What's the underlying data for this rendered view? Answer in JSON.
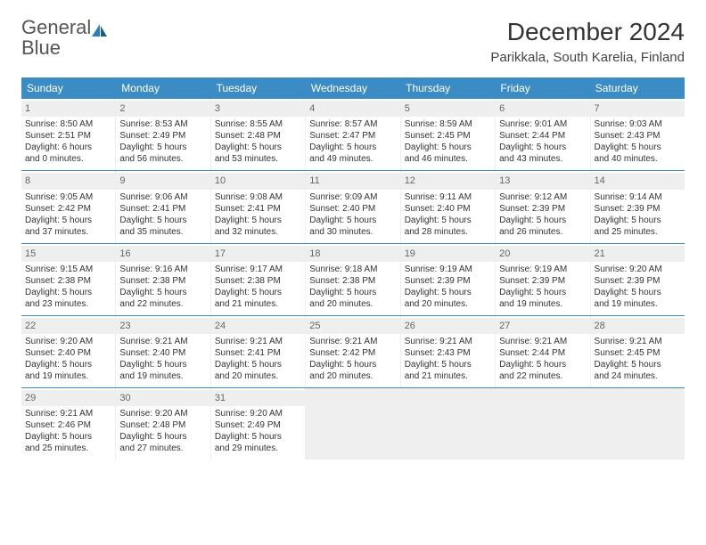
{
  "logo": {
    "word1": "General",
    "word2": "Blue"
  },
  "title": "December 2024",
  "location": "Parikkala, South Karelia, Finland",
  "colors": {
    "header_bg": "#3b8cc4",
    "header_text": "#ffffff",
    "daynum_bg": "#efefef",
    "border": "#3b8cc4",
    "logo_blue": "#2a7fba",
    "text": "#333333"
  },
  "day_headers": [
    "Sunday",
    "Monday",
    "Tuesday",
    "Wednesday",
    "Thursday",
    "Friday",
    "Saturday"
  ],
  "weeks": [
    [
      {
        "num": "1",
        "sunrise": "Sunrise: 8:50 AM",
        "sunset": "Sunset: 2:51 PM",
        "day1": "Daylight: 6 hours",
        "day2": "and 0 minutes."
      },
      {
        "num": "2",
        "sunrise": "Sunrise: 8:53 AM",
        "sunset": "Sunset: 2:49 PM",
        "day1": "Daylight: 5 hours",
        "day2": "and 56 minutes."
      },
      {
        "num": "3",
        "sunrise": "Sunrise: 8:55 AM",
        "sunset": "Sunset: 2:48 PM",
        "day1": "Daylight: 5 hours",
        "day2": "and 53 minutes."
      },
      {
        "num": "4",
        "sunrise": "Sunrise: 8:57 AM",
        "sunset": "Sunset: 2:47 PM",
        "day1": "Daylight: 5 hours",
        "day2": "and 49 minutes."
      },
      {
        "num": "5",
        "sunrise": "Sunrise: 8:59 AM",
        "sunset": "Sunset: 2:45 PM",
        "day1": "Daylight: 5 hours",
        "day2": "and 46 minutes."
      },
      {
        "num": "6",
        "sunrise": "Sunrise: 9:01 AM",
        "sunset": "Sunset: 2:44 PM",
        "day1": "Daylight: 5 hours",
        "day2": "and 43 minutes."
      },
      {
        "num": "7",
        "sunrise": "Sunrise: 9:03 AM",
        "sunset": "Sunset: 2:43 PM",
        "day1": "Daylight: 5 hours",
        "day2": "and 40 minutes."
      }
    ],
    [
      {
        "num": "8",
        "sunrise": "Sunrise: 9:05 AM",
        "sunset": "Sunset: 2:42 PM",
        "day1": "Daylight: 5 hours",
        "day2": "and 37 minutes."
      },
      {
        "num": "9",
        "sunrise": "Sunrise: 9:06 AM",
        "sunset": "Sunset: 2:41 PM",
        "day1": "Daylight: 5 hours",
        "day2": "and 35 minutes."
      },
      {
        "num": "10",
        "sunrise": "Sunrise: 9:08 AM",
        "sunset": "Sunset: 2:41 PM",
        "day1": "Daylight: 5 hours",
        "day2": "and 32 minutes."
      },
      {
        "num": "11",
        "sunrise": "Sunrise: 9:09 AM",
        "sunset": "Sunset: 2:40 PM",
        "day1": "Daylight: 5 hours",
        "day2": "and 30 minutes."
      },
      {
        "num": "12",
        "sunrise": "Sunrise: 9:11 AM",
        "sunset": "Sunset: 2:40 PM",
        "day1": "Daylight: 5 hours",
        "day2": "and 28 minutes."
      },
      {
        "num": "13",
        "sunrise": "Sunrise: 9:12 AM",
        "sunset": "Sunset: 2:39 PM",
        "day1": "Daylight: 5 hours",
        "day2": "and 26 minutes."
      },
      {
        "num": "14",
        "sunrise": "Sunrise: 9:14 AM",
        "sunset": "Sunset: 2:39 PM",
        "day1": "Daylight: 5 hours",
        "day2": "and 25 minutes."
      }
    ],
    [
      {
        "num": "15",
        "sunrise": "Sunrise: 9:15 AM",
        "sunset": "Sunset: 2:38 PM",
        "day1": "Daylight: 5 hours",
        "day2": "and 23 minutes."
      },
      {
        "num": "16",
        "sunrise": "Sunrise: 9:16 AM",
        "sunset": "Sunset: 2:38 PM",
        "day1": "Daylight: 5 hours",
        "day2": "and 22 minutes."
      },
      {
        "num": "17",
        "sunrise": "Sunrise: 9:17 AM",
        "sunset": "Sunset: 2:38 PM",
        "day1": "Daylight: 5 hours",
        "day2": "and 21 minutes."
      },
      {
        "num": "18",
        "sunrise": "Sunrise: 9:18 AM",
        "sunset": "Sunset: 2:38 PM",
        "day1": "Daylight: 5 hours",
        "day2": "and 20 minutes."
      },
      {
        "num": "19",
        "sunrise": "Sunrise: 9:19 AM",
        "sunset": "Sunset: 2:39 PM",
        "day1": "Daylight: 5 hours",
        "day2": "and 20 minutes."
      },
      {
        "num": "20",
        "sunrise": "Sunrise: 9:19 AM",
        "sunset": "Sunset: 2:39 PM",
        "day1": "Daylight: 5 hours",
        "day2": "and 19 minutes."
      },
      {
        "num": "21",
        "sunrise": "Sunrise: 9:20 AM",
        "sunset": "Sunset: 2:39 PM",
        "day1": "Daylight: 5 hours",
        "day2": "and 19 minutes."
      }
    ],
    [
      {
        "num": "22",
        "sunrise": "Sunrise: 9:20 AM",
        "sunset": "Sunset: 2:40 PM",
        "day1": "Daylight: 5 hours",
        "day2": "and 19 minutes."
      },
      {
        "num": "23",
        "sunrise": "Sunrise: 9:21 AM",
        "sunset": "Sunset: 2:40 PM",
        "day1": "Daylight: 5 hours",
        "day2": "and 19 minutes."
      },
      {
        "num": "24",
        "sunrise": "Sunrise: 9:21 AM",
        "sunset": "Sunset: 2:41 PM",
        "day1": "Daylight: 5 hours",
        "day2": "and 20 minutes."
      },
      {
        "num": "25",
        "sunrise": "Sunrise: 9:21 AM",
        "sunset": "Sunset: 2:42 PM",
        "day1": "Daylight: 5 hours",
        "day2": "and 20 minutes."
      },
      {
        "num": "26",
        "sunrise": "Sunrise: 9:21 AM",
        "sunset": "Sunset: 2:43 PM",
        "day1": "Daylight: 5 hours",
        "day2": "and 21 minutes."
      },
      {
        "num": "27",
        "sunrise": "Sunrise: 9:21 AM",
        "sunset": "Sunset: 2:44 PM",
        "day1": "Daylight: 5 hours",
        "day2": "and 22 minutes."
      },
      {
        "num": "28",
        "sunrise": "Sunrise: 9:21 AM",
        "sunset": "Sunset: 2:45 PM",
        "day1": "Daylight: 5 hours",
        "day2": "and 24 minutes."
      }
    ],
    [
      {
        "num": "29",
        "sunrise": "Sunrise: 9:21 AM",
        "sunset": "Sunset: 2:46 PM",
        "day1": "Daylight: 5 hours",
        "day2": "and 25 minutes."
      },
      {
        "num": "30",
        "sunrise": "Sunrise: 9:20 AM",
        "sunset": "Sunset: 2:48 PM",
        "day1": "Daylight: 5 hours",
        "day2": "and 27 minutes."
      },
      {
        "num": "31",
        "sunrise": "Sunrise: 9:20 AM",
        "sunset": "Sunset: 2:49 PM",
        "day1": "Daylight: 5 hours",
        "day2": "and 29 minutes."
      },
      null,
      null,
      null,
      null
    ]
  ]
}
